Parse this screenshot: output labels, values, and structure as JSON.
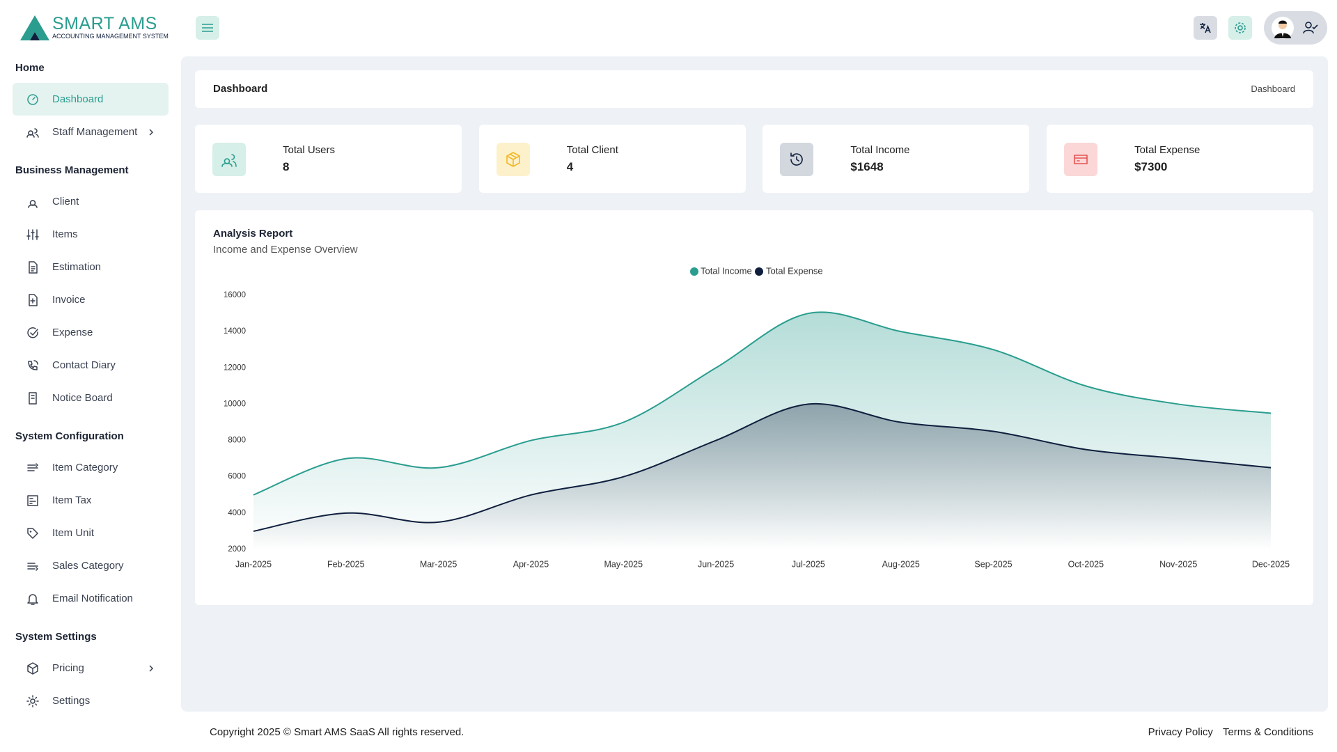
{
  "brand": {
    "name": "SMART AMS",
    "tagline": "ACCOUNTING MANAGEMENT SYSTEM"
  },
  "sidebar": {
    "sections": [
      {
        "title": "Home",
        "items": [
          {
            "label": "Dashboard",
            "active": true
          },
          {
            "label": "Staff Management",
            "expandable": true
          }
        ]
      },
      {
        "title": "Business Management",
        "items": [
          {
            "label": "Client"
          },
          {
            "label": "Items"
          },
          {
            "label": "Estimation"
          },
          {
            "label": "Invoice"
          },
          {
            "label": "Expense"
          },
          {
            "label": "Contact Diary"
          },
          {
            "label": "Notice Board"
          }
        ]
      },
      {
        "title": "System Configuration",
        "items": [
          {
            "label": "Item Category"
          },
          {
            "label": "Item Tax"
          },
          {
            "label": "Item Unit"
          },
          {
            "label": "Sales Category"
          },
          {
            "label": "Email Notification"
          }
        ]
      },
      {
        "title": "System Settings",
        "items": [
          {
            "label": "Pricing",
            "expandable": true
          },
          {
            "label": "Settings"
          }
        ]
      }
    ]
  },
  "breadcrumb": {
    "title": "Dashboard",
    "trail": "Dashboard"
  },
  "stats": [
    {
      "label": "Total Users",
      "value": "8"
    },
    {
      "label": "Total Client",
      "value": "4"
    },
    {
      "label": "Total Income",
      "value": "$1648"
    },
    {
      "label": "Total Expense",
      "value": "$7300"
    }
  ],
  "chart_data": {
    "type": "line",
    "title": "Analysis Report",
    "subtitle": "Income and Expense Overview",
    "categories": [
      "Jan-2025",
      "Feb-2025",
      "Mar-2025",
      "Apr-2025",
      "May-2025",
      "Jun-2025",
      "Jul-2025",
      "Aug-2025",
      "Sep-2025",
      "Oct-2025",
      "Nov-2025",
      "Dec-2025"
    ],
    "series": [
      {
        "name": "Total Income",
        "color": "#2a9d8f",
        "values": [
          5000,
          7000,
          6500,
          8000,
          9000,
          12000,
          15000,
          14000,
          13000,
          11000,
          10000,
          9500
        ]
      },
      {
        "name": "Total Expense",
        "color": "#0f1f3d",
        "values": [
          3000,
          4000,
          3500,
          5000,
          6000,
          8000,
          10000,
          9000,
          8500,
          7500,
          7000,
          6500
        ]
      }
    ],
    "ylim": [
      2000,
      16000
    ],
    "yticks": [
      2000,
      4000,
      6000,
      8000,
      10000,
      12000,
      14000,
      16000
    ],
    "area": true,
    "grid": false,
    "legend": "top"
  },
  "footer": {
    "copyright": "Copyright 2025 © Smart AMS SaaS All rights reserved.",
    "links": [
      "Privacy Policy",
      "Terms & Conditions"
    ]
  }
}
